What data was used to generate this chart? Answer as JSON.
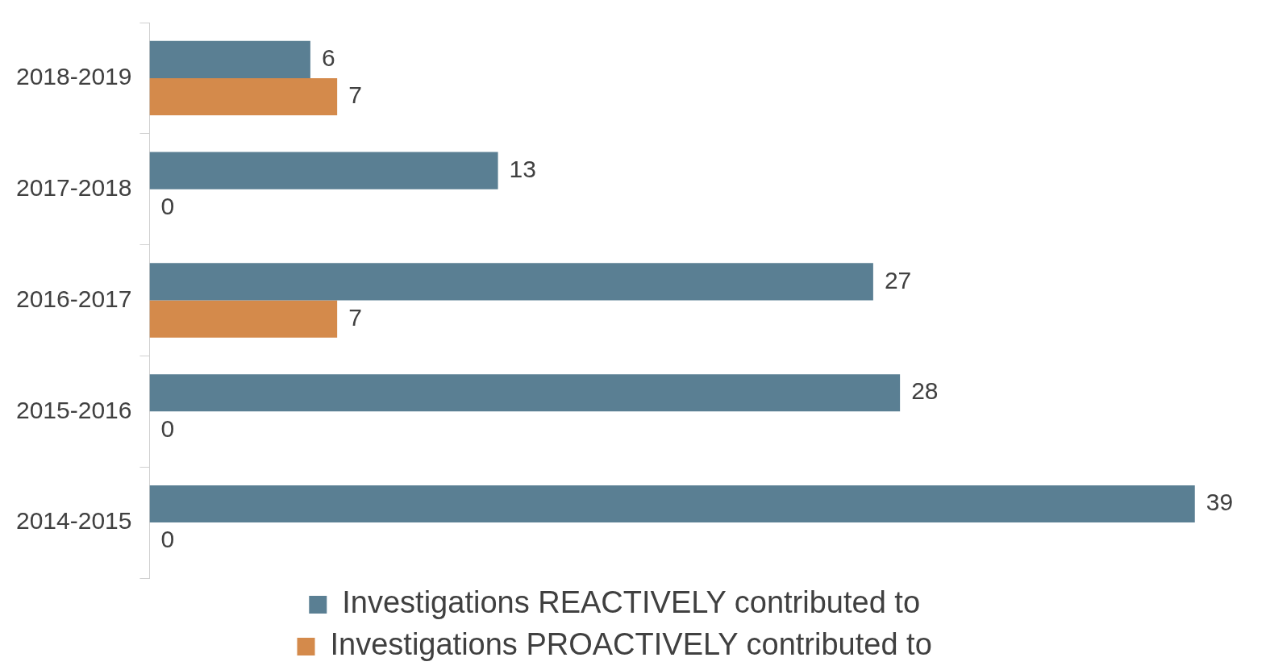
{
  "chart_data": {
    "type": "bar",
    "orientation": "horizontal",
    "categories": [
      "2018-2019",
      "2017-2018",
      "2016-2017",
      "2015-2016",
      "2014-2015"
    ],
    "series": [
      {
        "name": "Investigations REACTIVELY contributed to",
        "color": "#5a7f93",
        "values": [
          6,
          13,
          27,
          28,
          39
        ]
      },
      {
        "name": "Investigations PROACTIVELY contributed to",
        "color": "#d48a4b",
        "values": [
          7,
          0,
          7,
          0,
          0
        ]
      }
    ],
    "data_labels": true,
    "legend": "bottom"
  }
}
